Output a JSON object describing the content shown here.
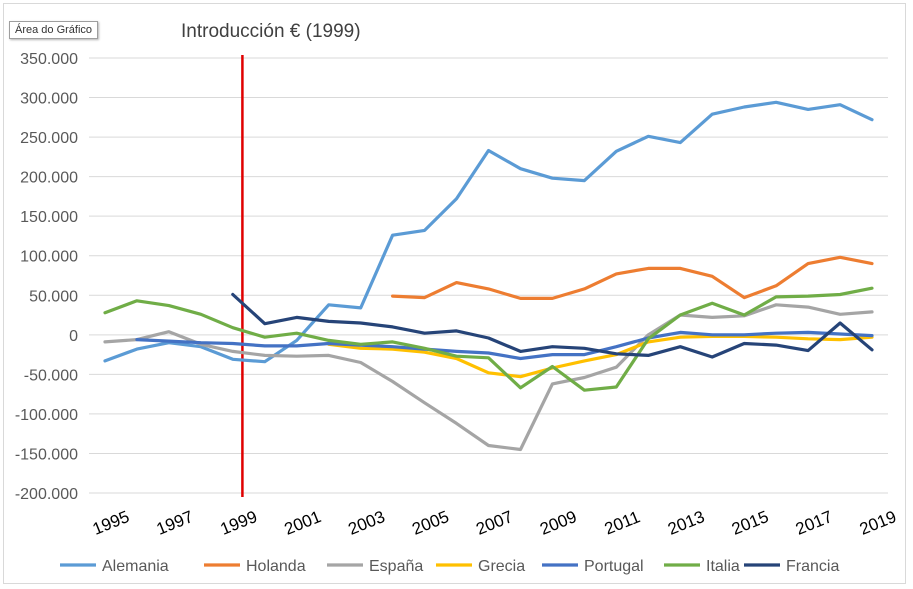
{
  "chart_data": {
    "type": "line",
    "tooltip": "Área do Gráfico",
    "annotation": "Introducción € (1999)",
    "x": [
      1995,
      1996,
      1997,
      1998,
      1999,
      2000,
      2001,
      2002,
      2003,
      2004,
      2005,
      2006,
      2007,
      2008,
      2009,
      2010,
      2011,
      2012,
      2013,
      2014,
      2015,
      2016,
      2017,
      2018,
      2019
    ],
    "xtick_labels": [
      "1995",
      "1997",
      "1999",
      "2001",
      "2003",
      "2005",
      "2007",
      "2009",
      "2011",
      "2013",
      "2015",
      "2017",
      "2019"
    ],
    "ylim": [
      -200000,
      350000
    ],
    "ytick_labels": [
      "350.000",
      "300.000",
      "250.000",
      "200.000",
      "150.000",
      "100.000",
      "50.000",
      "0",
      "-50.000",
      "-100.000",
      "-150.000",
      "-200.000"
    ],
    "reference_line": {
      "x": 1999.3,
      "color": "#e00000"
    },
    "series": [
      {
        "name": "Alemania",
        "color": "#5b9bd5",
        "values": [
          -33000,
          -18000,
          -10000,
          -15000,
          -31000,
          -34000,
          -7000,
          38000,
          34000,
          126000,
          132000,
          172000,
          233000,
          210000,
          198000,
          195000,
          232000,
          251000,
          243000,
          279000,
          288000,
          294000,
          285000,
          291000,
          272000
        ]
      },
      {
        "name": "Holanda",
        "color": "#ed7d31",
        "values": [
          null,
          null,
          null,
          null,
          null,
          null,
          null,
          null,
          null,
          49000,
          47000,
          66000,
          58000,
          46000,
          46000,
          58000,
          77000,
          84000,
          84000,
          74000,
          47000,
          62000,
          90000,
          98000,
          90000
        ]
      },
      {
        "name": "España",
        "color": "#a5a5a5",
        "values": [
          -9000,
          -6000,
          4000,
          -12000,
          -21000,
          -26000,
          -27000,
          -26000,
          -35000,
          -59000,
          -86000,
          -112000,
          -140000,
          -145000,
          -62000,
          -54000,
          -41000,
          0,
          25000,
          22000,
          24000,
          38000,
          35000,
          26000,
          29000
        ]
      },
      {
        "name": "Grecia",
        "color": "#ffc000",
        "values": [
          null,
          null,
          null,
          null,
          null,
          null,
          null,
          -12000,
          -17000,
          -18000,
          -22000,
          -30000,
          -48000,
          -53000,
          -42000,
          -33000,
          -25000,
          -9000,
          -3000,
          -2000,
          -2000,
          -3000,
          -5000,
          -6000,
          -3000
        ]
      },
      {
        "name": "Portugal",
        "color": "#4472c4",
        "values": [
          null,
          -6000,
          -8000,
          -10000,
          -11000,
          -14000,
          -14000,
          -11000,
          -13000,
          -15000,
          -18000,
          -21000,
          -23000,
          -30000,
          -25000,
          -25000,
          -15000,
          -4000,
          3000,
          0,
          0,
          2000,
          3000,
          1000,
          -1000
        ]
      },
      {
        "name": "Italia",
        "color": "#70ad47",
        "values": [
          28000,
          43000,
          37000,
          26000,
          9000,
          -3000,
          2000,
          -7000,
          -12000,
          -9000,
          -17000,
          -27000,
          -29000,
          -67000,
          -40000,
          -70000,
          -66000,
          -5000,
          25000,
          40000,
          25000,
          48000,
          49000,
          51000,
          59000
        ]
      },
      {
        "name": "Francia",
        "color": "#264478",
        "values": [
          null,
          null,
          null,
          null,
          51000,
          14000,
          22000,
          17000,
          15000,
          10000,
          2000,
          5000,
          -4000,
          -21000,
          -15000,
          -17000,
          -24000,
          -26000,
          -15000,
          -28000,
          -11000,
          -13000,
          -20000,
          15000,
          -19000
        ]
      }
    ]
  }
}
